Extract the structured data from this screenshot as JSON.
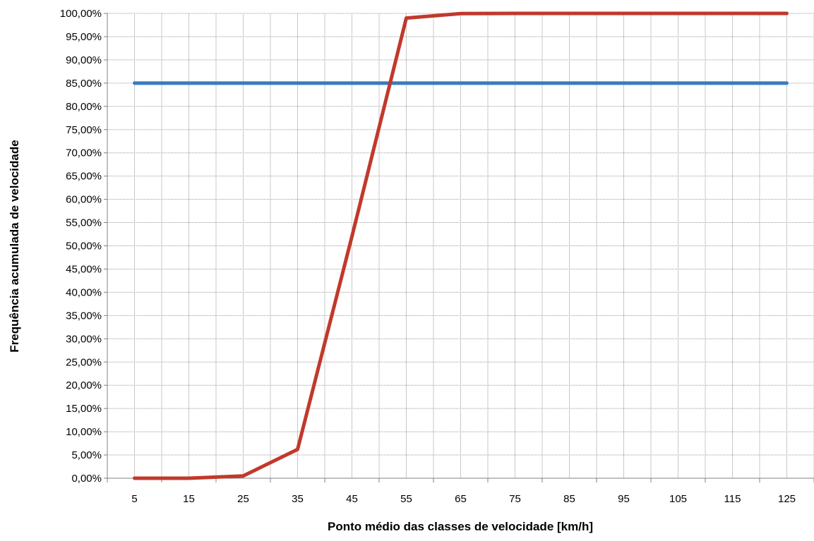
{
  "chart_data": {
    "type": "line",
    "title": "",
    "xlabel": "Ponto médio das classes de velocidade [km/h]",
    "ylabel": "Frequência acumulada de velocidade",
    "categories": [
      "5",
      "15",
      "25",
      "35",
      "45",
      "55",
      "65",
      "75",
      "85",
      "95",
      "105",
      "115",
      "125"
    ],
    "x_minor_ticks": true,
    "yticks": [
      "0,00%",
      "5,00%",
      "10,00%",
      "15,00%",
      "20,00%",
      "25,00%",
      "30,00%",
      "35,00%",
      "40,00%",
      "45,00%",
      "50,00%",
      "55,00%",
      "60,00%",
      "65,00%",
      "70,00%",
      "75,00%",
      "80,00%",
      "85,00%",
      "90,00%",
      "95,00%",
      "100,00%"
    ],
    "ylim": [
      0,
      100
    ],
    "ytick_step": 5,
    "grid": true,
    "legend": "none",
    "series": [
      {
        "color": "#c0392b",
        "values": [
          0.0,
          0.0,
          0.5,
          6.2,
          52.0,
          99.0,
          99.95,
          100.0,
          100.0,
          100.0,
          100.0,
          100.0,
          100.0
        ]
      },
      {
        "color": "#3a7bbf",
        "values": [
          85.0,
          85.0,
          85.0,
          85.0,
          85.0,
          85.0,
          85.0,
          85.0,
          85.0,
          85.0,
          85.0,
          85.0,
          85.0
        ]
      }
    ]
  }
}
